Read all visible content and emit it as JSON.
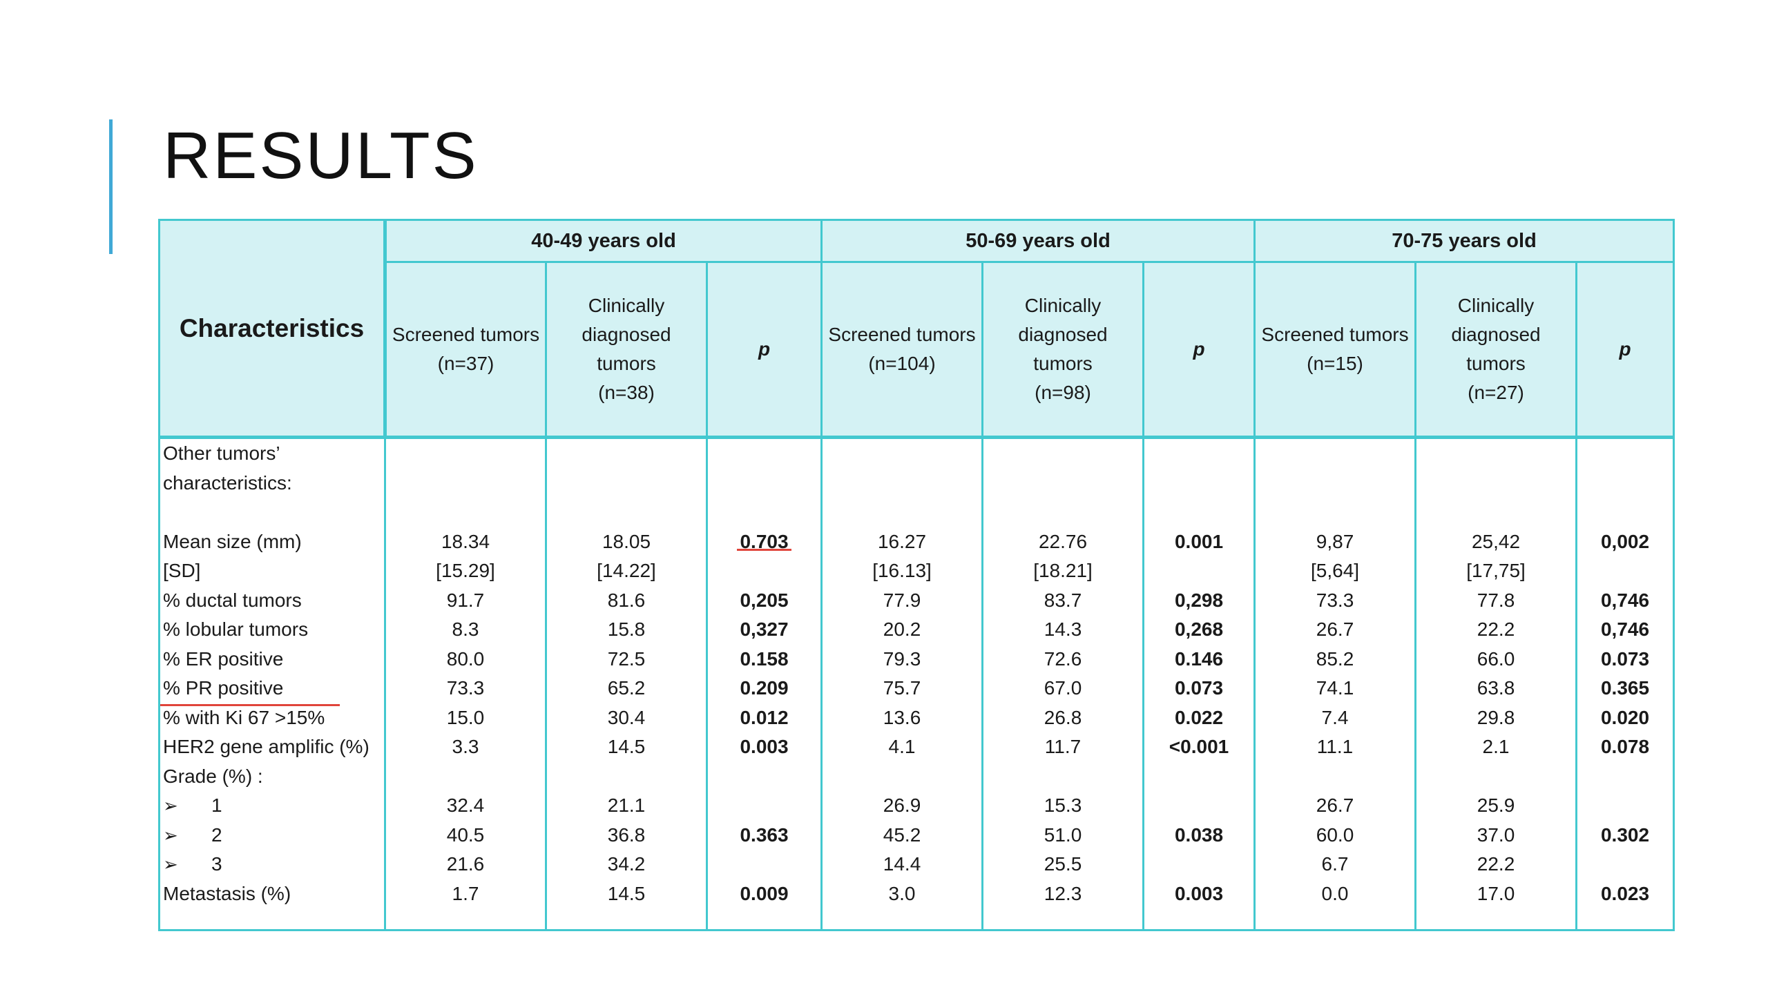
{
  "slide": {
    "title": "RESULTS"
  },
  "table": {
    "characteristics_header": "Characteristics",
    "groups": [
      "40-49 years old",
      "50-69 years old",
      "70-75 years old"
    ],
    "subheaders": [
      {
        "screened": [
          "Screened tumors",
          "(n=37)"
        ],
        "clinical": [
          "Clinically",
          "diagnosed",
          "tumors",
          "(n=38)"
        ],
        "p": "p"
      },
      {
        "screened": [
          "Screened tumors",
          "(n=104)"
        ],
        "clinical": [
          "Clinically",
          "diagnosed",
          "tumors",
          "(n=98)"
        ],
        "p": "p"
      },
      {
        "screened": [
          "Screened tumors",
          "(n=15)"
        ],
        "clinical": [
          "Clinically",
          "diagnosed",
          "tumors",
          "(n=27)"
        ],
        "p": "p"
      }
    ],
    "labels": [
      "Other tumors’",
      "characteristics:",
      "",
      "Mean size (mm)",
      "[SD]",
      "% ductal tumors",
      "%  lobular tumors",
      "% ER positive",
      "% PR positive",
      "% with Ki 67 >15%",
      " HER2 gene amplific (%)",
      "Grade (%) :",
      "1",
      "2",
      "3",
      "Metastasis (%)"
    ],
    "arrow_symbol": "➢",
    "columns": [
      [
        "",
        "",
        "",
        "18.34",
        "[15.29]",
        "91.7",
        "8.3",
        "80.0",
        "73.3",
        "15.0",
        "3.3",
        "",
        "32.4",
        "40.5",
        "21.6",
        "1.7"
      ],
      [
        "",
        "",
        "",
        "18.05",
        "[14.22]",
        "81.6",
        "15.8",
        "72.5",
        "65.2",
        "30.4",
        "14.5",
        "",
        "21.1",
        "36.8",
        "34.2",
        "14.5"
      ],
      [
        "",
        "",
        "",
        "0.703",
        "",
        "0,205",
        "0,327",
        "0.158",
        "0.209",
        "0.012",
        "0.003",
        "",
        "",
        "0.363",
        "",
        "0.009"
      ],
      [
        "",
        "",
        "",
        "16.27",
        "[16.13]",
        "77.9",
        "20.2",
        "79.3",
        "75.7",
        "13.6",
        "4.1",
        "",
        "26.9",
        "45.2",
        "14.4",
        "3.0"
      ],
      [
        "",
        "",
        "",
        "22.76",
        "[18.21]",
        "83.7",
        "14.3",
        "72.6",
        "67.0",
        "26.8",
        "11.7",
        "",
        "15.3",
        "51.0",
        "25.5",
        "12.3"
      ],
      [
        "",
        "",
        "",
        "0.001",
        "",
        "0,298",
        "0,268",
        "0.146",
        "0.073",
        "0.022",
        "<0.001",
        "",
        "",
        "0.038",
        "",
        "0.003"
      ],
      [
        "",
        "",
        "",
        "9,87",
        "[5,64]",
        "73.3",
        "26.7",
        "85.2",
        "74.1",
        "7.4",
        "11.1",
        "",
        "26.7",
        "60.0",
        "6.7",
        "0.0"
      ],
      [
        "",
        "",
        "",
        "25,42",
        "[17,75]",
        "77.8",
        "22.2",
        "66.0",
        "63.8",
        "29.8",
        "2.1",
        "",
        "25.9",
        "37.0",
        "22.2",
        "17.0"
      ],
      [
        "",
        "",
        "",
        "0,002",
        "",
        "0,746",
        "0,746",
        "0.073",
        "0.365",
        "0.020",
        "0.078",
        "",
        "",
        "0.302",
        "",
        "0.023"
      ]
    ]
  }
}
